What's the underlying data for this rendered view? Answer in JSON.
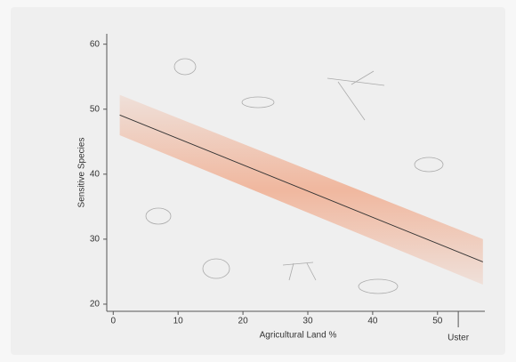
{
  "chart_data": {
    "type": "line",
    "x_label": "Agricultural Land %",
    "y_label": "Sensitive Species",
    "x": [
      1,
      57
    ],
    "values": [
      49.1,
      26.5
    ],
    "color": "#333333",
    "band": {
      "lower": [
        46.0,
        23.0
      ],
      "upper": [
        52.2,
        30.0
      ],
      "color": "#f08a5d"
    },
    "xlim": [
      -1,
      57.3
    ],
    "ylim": [
      18.9,
      61.6
    ],
    "xticks": [
      0,
      10,
      20,
      30,
      40,
      50
    ],
    "yticks": [
      20,
      30,
      40,
      50,
      60
    ],
    "annotation": {
      "text": "Uster",
      "x": 53.2
    }
  }
}
